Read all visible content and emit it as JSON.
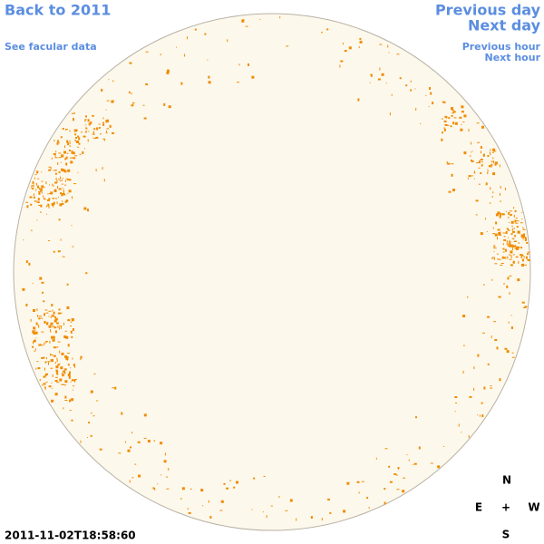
{
  "nav": {
    "back": "Back to 2011",
    "facular": "See facular data",
    "previous_day": "Previous day",
    "next_day": "Next day",
    "previous_hour": "Previous hour",
    "next_hour": "Next hour"
  },
  "timestamp": "2011-11-02T18:58:60",
  "compass": {
    "north": "N",
    "east": "E",
    "center": "+",
    "west": "W",
    "south": "S"
  }
}
